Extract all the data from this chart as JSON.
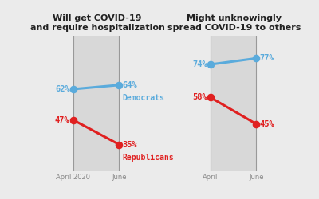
{
  "panel1_title": "Will get COVID-19\nand require hospitalization",
  "panel2_title": "Might unknowingly\nspread COVID-19 to others",
  "x_labels_1": [
    "April 2020",
    "June"
  ],
  "x_labels_2": [
    "April",
    "June"
  ],
  "dem_color": "#5aabdc",
  "rep_color": "#e02020",
  "panel_bg": "#d8d8d8",
  "outer_bg": "#ebebeb",
  "panel1": {
    "dem": [
      62,
      64
    ],
    "rep": [
      47,
      35
    ]
  },
  "panel2": {
    "dem": [
      74,
      77
    ],
    "rep": [
      58,
      45
    ]
  },
  "dem_label": "Democrats",
  "rep_label": "Republicans",
  "title_fontsize": 8.0,
  "label_fontsize": 7.5,
  "tick_fontsize": 6.0,
  "party_fontsize": 7.0
}
